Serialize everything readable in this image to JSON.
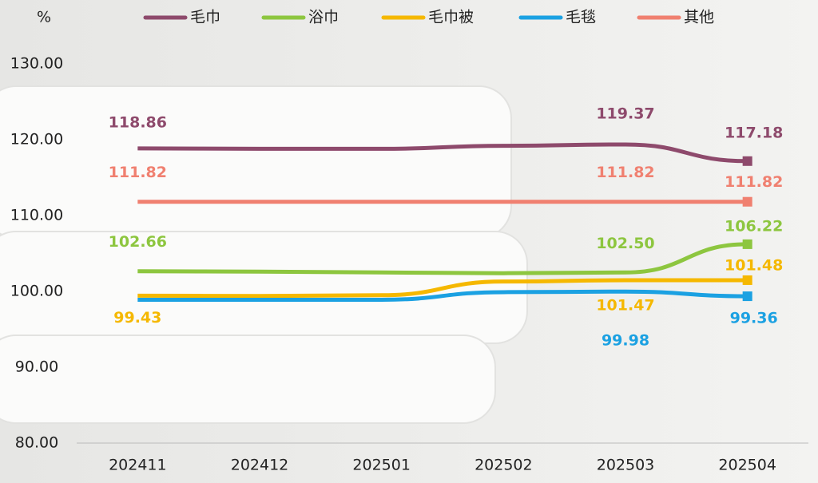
{
  "chart_data": {
    "type": "line",
    "y_label": "%",
    "categories": [
      "202411",
      "202412",
      "202501",
      "202502",
      "202503",
      "202504"
    ],
    "ylim": [
      80,
      130
    ],
    "yticks": [
      {
        "value": 80,
        "label": "80.00"
      },
      {
        "value": 90,
        "label": "90.00"
      },
      {
        "value": 100,
        "label": "100.00"
      },
      {
        "value": 110,
        "label": "110.00"
      },
      {
        "value": 120,
        "label": "120.00"
      },
      {
        "value": 130,
        "label": "130.00"
      }
    ],
    "series": [
      {
        "name": "毛巾",
        "color": "#8e4a6c",
        "values": [
          118.86,
          118.8,
          118.8,
          119.2,
          119.37,
          117.18
        ],
        "value_labels": [
          "118.86",
          null,
          null,
          null,
          "119.37",
          "117.18"
        ]
      },
      {
        "name": "浴巾",
        "color": "#8dc63f",
        "values": [
          102.66,
          102.6,
          102.5,
          102.4,
          102.5,
          106.22
        ],
        "value_labels": [
          "102.66",
          null,
          null,
          null,
          "102.50",
          "106.22"
        ]
      },
      {
        "name": "毛巾被",
        "color": "#f5b800",
        "values": [
          99.43,
          99.4,
          99.5,
          101.3,
          101.47,
          101.48
        ],
        "value_labels": [
          "99.43",
          null,
          null,
          null,
          "101.47",
          "101.48"
        ]
      },
      {
        "name": "毛毯",
        "color": "#1ba1e2",
        "values": [
          98.9,
          98.9,
          98.9,
          99.9,
          99.98,
          99.36
        ],
        "value_labels": [
          null,
          null,
          null,
          null,
          "99.98",
          "99.36"
        ]
      },
      {
        "name": "其他",
        "color": "#f08070",
        "values": [
          111.82,
          111.82,
          111.82,
          111.82,
          111.82,
          111.82
        ],
        "value_labels": [
          "111.82",
          null,
          null,
          null,
          "111.82",
          "111.82"
        ]
      }
    ]
  }
}
